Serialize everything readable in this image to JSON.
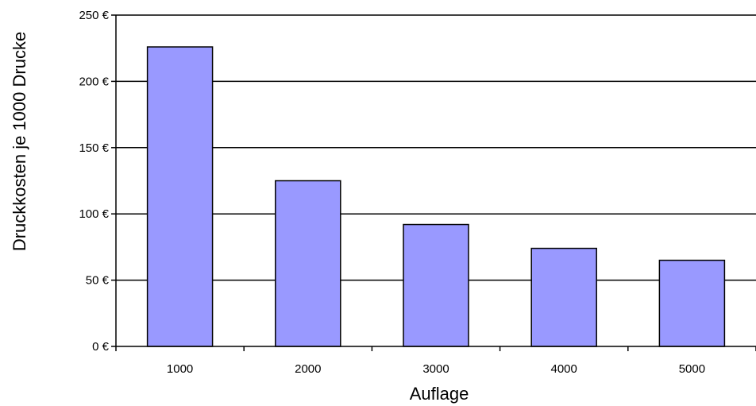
{
  "chart_data": {
    "type": "bar",
    "title": "",
    "xlabel": "Auflage",
    "ylabel": "Druckkosten je 1000 Drucke",
    "categories": [
      "1000",
      "2000",
      "3000",
      "4000",
      "5000"
    ],
    "values": [
      226,
      125,
      92,
      74,
      65
    ],
    "ylim": [
      0,
      250
    ],
    "yticks": [
      0,
      50,
      100,
      150,
      200,
      250
    ],
    "ytick_labels": [
      "0 €",
      "50 €",
      "100 €",
      "150 €",
      "200 €",
      "250 €"
    ],
    "grid": true,
    "legend": "none",
    "bar_color": "#9999ff"
  }
}
